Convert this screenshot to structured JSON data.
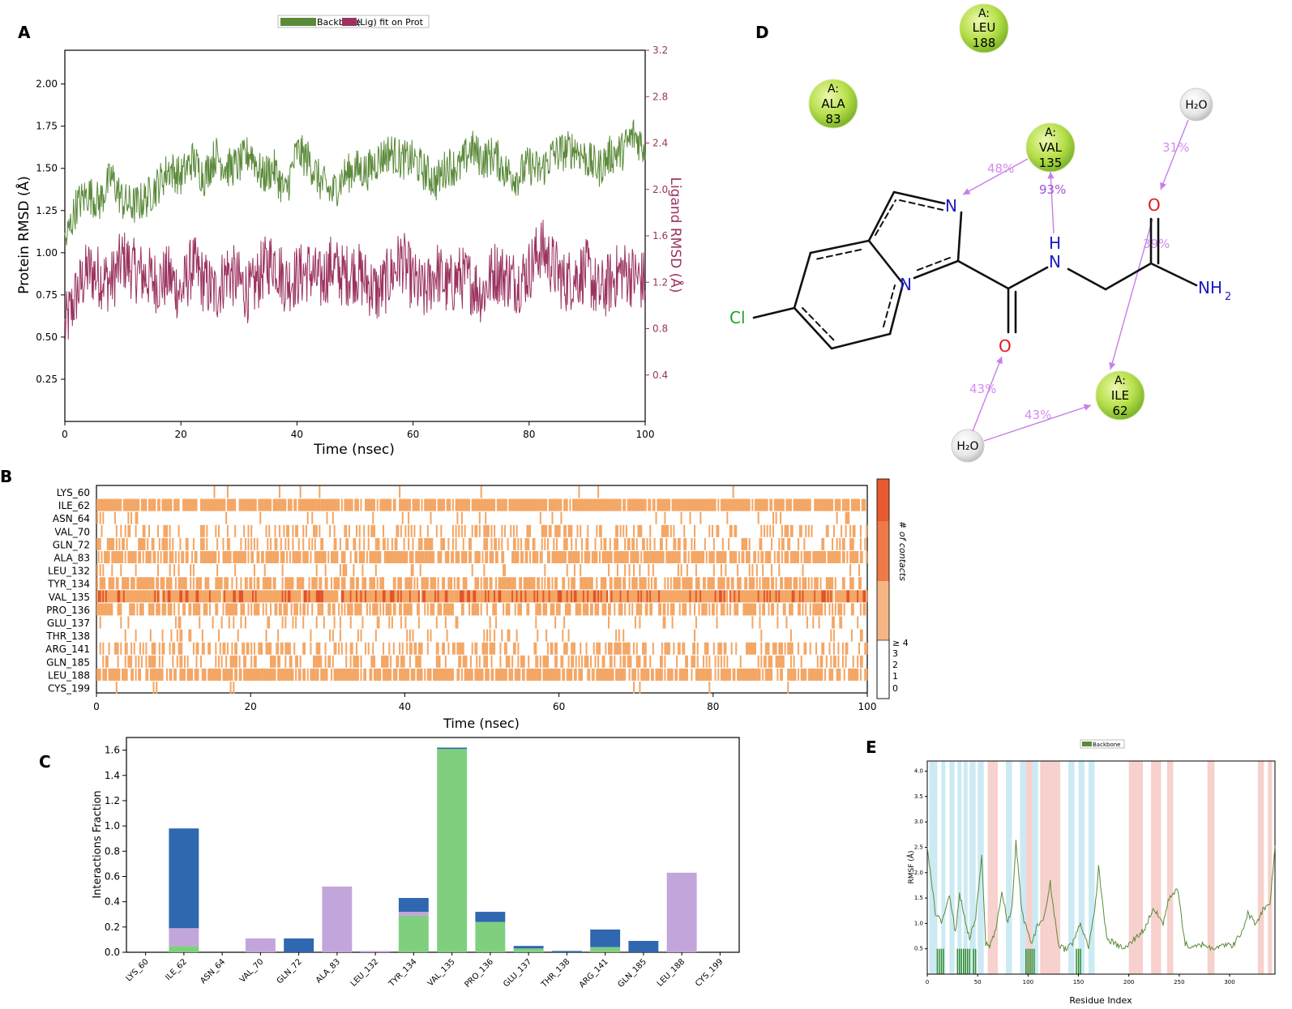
{
  "panel_letters": {
    "a": "A",
    "b": "B",
    "c": "C",
    "d": "D",
    "e": "E"
  },
  "colors": {
    "green": "#5b8a3a",
    "maroon": "#9b3360",
    "blue": "#2f67b1",
    "purple": "#c2a5da",
    "light_green": "#7fcf7f",
    "contact_orange": "#f4a665",
    "contact_dark": "#e0532a",
    "sheet_pink": "#f5c6c0",
    "helix_cyan": "#bfe5f1",
    "arrow_violet": "#d58cf0"
  },
  "chart_data": [
    {
      "id": "A",
      "type": "line",
      "legend": [
        "Backbone",
        "(Lig) fit on Prot"
      ],
      "legend_placement": "top-center",
      "xlabel": "Time (nsec)",
      "ylabel_left": "Protein RMSD (Å)",
      "ylabel_right": "Ligand RMSD (Å)",
      "xlim": [
        0,
        100
      ],
      "ylim_left": [
        0.0,
        2.2
      ],
      "ylim_right": [
        0.0,
        3.2
      ],
      "xticks": [
        "0",
        "20",
        "40",
        "60",
        "80",
        "100"
      ],
      "yticks_left": [
        "0.25",
        "0.50",
        "0.75",
        "1.00",
        "1.25",
        "1.50",
        "1.75",
        "2.00"
      ],
      "yticks_right": [
        "0.4",
        "0.8",
        "1.2",
        "1.6",
        "2.0",
        "2.4",
        "2.8",
        "3.2"
      ],
      "series": [
        {
          "name": "Backbone",
          "axis": "left",
          "x": [
            0,
            2,
            4,
            6,
            8,
            10,
            12,
            14,
            16,
            18,
            20,
            22,
            24,
            26,
            28,
            30,
            32,
            34,
            36,
            38,
            40,
            42,
            44,
            46,
            48,
            50,
            52,
            54,
            56,
            58,
            60,
            62,
            64,
            66,
            68,
            70,
            72,
            74,
            76,
            78,
            80,
            82,
            84,
            86,
            88,
            90,
            92,
            94,
            96,
            98,
            100
          ],
          "y": [
            1.05,
            1.28,
            1.35,
            1.3,
            1.45,
            1.3,
            1.28,
            1.32,
            1.4,
            1.5,
            1.45,
            1.55,
            1.45,
            1.58,
            1.5,
            1.52,
            1.6,
            1.45,
            1.5,
            1.35,
            1.6,
            1.55,
            1.42,
            1.35,
            1.45,
            1.5,
            1.48,
            1.55,
            1.6,
            1.55,
            1.55,
            1.48,
            1.42,
            1.52,
            1.5,
            1.62,
            1.55,
            1.58,
            1.48,
            1.45,
            1.52,
            1.48,
            1.58,
            1.6,
            1.62,
            1.55,
            1.5,
            1.58,
            1.6,
            1.7,
            1.62
          ]
        },
        {
          "name": "(Lig) fit on Prot",
          "axis": "right",
          "x": [
            0,
            2,
            4,
            6,
            8,
            10,
            12,
            14,
            16,
            18,
            20,
            22,
            24,
            26,
            28,
            30,
            32,
            34,
            36,
            38,
            40,
            42,
            44,
            46,
            48,
            50,
            52,
            54,
            56,
            58,
            60,
            62,
            64,
            66,
            68,
            70,
            72,
            74,
            76,
            78,
            80,
            82,
            84,
            86,
            88,
            90,
            92,
            94,
            96,
            98,
            100
          ],
          "y": [
            0.8,
            1.1,
            1.3,
            1.25,
            1.2,
            1.4,
            1.3,
            1.25,
            1.2,
            1.25,
            1.1,
            1.35,
            1.2,
            1.1,
            1.3,
            1.2,
            1.1,
            1.3,
            1.4,
            1.2,
            1.25,
            1.3,
            1.2,
            1.35,
            1.25,
            1.3,
            1.2,
            1.1,
            1.25,
            1.4,
            1.2,
            1.1,
            1.3,
            1.15,
            1.25,
            1.2,
            1.1,
            1.3,
            1.25,
            1.2,
            1.3,
            1.5,
            1.35,
            1.2,
            1.25,
            1.3,
            1.1,
            1.2,
            1.3,
            1.25,
            1.2
          ]
        }
      ]
    },
    {
      "id": "B",
      "type": "heatmap",
      "xlabel": "Time (nsec)",
      "xlim": [
        0,
        100
      ],
      "xticks": [
        "0",
        "20",
        "40",
        "60",
        "80",
        "100"
      ],
      "rows": [
        "LYS_60",
        "ILE_62",
        "ASN_64",
        "VAL_70",
        "GLN_72",
        "ALA_83",
        "LEU_132",
        "TYR_134",
        "VAL_135",
        "PRO_136",
        "GLU_137",
        "THR_138",
        "ARG_141",
        "GLN_185",
        "LEU_188",
        "CYS_199"
      ],
      "contact_density": [
        0.02,
        0.9,
        0.08,
        0.3,
        0.35,
        0.75,
        0.1,
        0.65,
        0.98,
        0.6,
        0.12,
        0.08,
        0.45,
        0.4,
        0.75,
        0.01
      ],
      "colorbar_label": "# of contacts",
      "colorbar_ticks": [
        "0",
        "1",
        "2",
        "3",
        "≥ 4"
      ]
    },
    {
      "id": "C",
      "type": "bar",
      "stacked": true,
      "ylabel": "Interactions Fraction",
      "ylim": [
        0,
        1.7
      ],
      "yticks": [
        "0.0",
        "0.2",
        "0.4",
        "0.6",
        "0.8",
        "1.0",
        "1.2",
        "1.4",
        "1.6"
      ],
      "categories": [
        "LYS_60",
        "ILE_62",
        "ASN_64",
        "VAL_70",
        "GLN_72",
        "ALA_83",
        "LEU_132",
        "TYR_134",
        "VAL_135",
        "PRO_136",
        "GLU_137",
        "THR_138",
        "ARG_141",
        "GLN_185",
        "LEU_188",
        "CYS_199"
      ],
      "series": [
        {
          "type": "h-bonds",
          "color_key": "light_green",
          "values": [
            0.0,
            0.05,
            0.0,
            0.0,
            0.0,
            0.0,
            0.0,
            0.29,
            1.61,
            0.24,
            0.03,
            0.0,
            0.04,
            0.0,
            0.0,
            0.0
          ]
        },
        {
          "type": "hydrophobic",
          "color_key": "purple",
          "values": [
            0.0,
            0.14,
            0.0,
            0.11,
            0.0,
            0.52,
            0.01,
            0.03,
            0.0,
            0.0,
            0.0,
            0.0,
            0.0,
            0.0,
            0.63,
            0.0
          ]
        },
        {
          "type": "water bridges",
          "color_key": "blue",
          "values": [
            0.0,
            0.79,
            0.0,
            0.0,
            0.11,
            0.0,
            0.0,
            0.11,
            0.01,
            0.08,
            0.02,
            0.01,
            0.14,
            0.09,
            0.0,
            0.0
          ]
        }
      ]
    },
    {
      "id": "E",
      "type": "line",
      "legend": [
        "Backbone"
      ],
      "legend_placement": "top-center",
      "xlabel": "Residue Index",
      "ylabel": "RMSF (Å)",
      "xlim": [
        0,
        345
      ],
      "ylim": [
        0,
        4.2
      ],
      "xticks": [
        "0",
        "50",
        "100",
        "150",
        "200",
        "250",
        "300"
      ],
      "yticks": [
        "0.5",
        "1.0",
        "1.5",
        "2.0",
        "2.5",
        "3.0",
        "3.5",
        "4.0"
      ],
      "series": [
        {
          "name": "Backbone",
          "x": [
            0,
            8,
            14,
            22,
            28,
            32,
            36,
            42,
            48,
            54,
            58,
            62,
            68,
            74,
            80,
            84,
            88,
            94,
            100,
            104,
            110,
            116,
            122,
            130,
            136,
            144,
            152,
            160,
            166,
            170,
            178,
            186,
            196,
            206,
            216,
            224,
            234,
            240,
            248,
            256,
            262,
            268,
            274,
            282,
            292,
            302,
            312,
            318,
            326,
            334,
            340,
            345
          ],
          "y": [
            2.5,
            1.2,
            1.0,
            1.6,
            0.8,
            1.6,
            1.2,
            0.7,
            1.1,
            2.3,
            0.6,
            0.55,
            0.9,
            1.6,
            1.0,
            1.3,
            2.6,
            1.2,
            0.8,
            0.6,
            1.0,
            1.1,
            1.8,
            0.6,
            0.5,
            0.6,
            1.0,
            0.55,
            1.2,
            2.1,
            0.7,
            0.6,
            0.5,
            0.7,
            0.9,
            1.3,
            1.0,
            1.5,
            1.7,
            0.6,
            0.5,
            0.55,
            0.6,
            0.5,
            0.6,
            0.55,
            0.8,
            1.2,
            1.0,
            1.3,
            1.4,
            2.5
          ]
        }
      ],
      "helix_regions": [
        [
          2,
          10
        ],
        [
          14,
          18
        ],
        [
          22,
          27
        ],
        [
          30,
          34
        ],
        [
          36,
          40
        ],
        [
          42,
          48
        ],
        [
          50,
          56
        ],
        [
          78,
          84
        ],
        [
          92,
          98
        ],
        [
          104,
          110
        ],
        [
          140,
          146
        ],
        [
          150,
          156
        ],
        [
          160,
          166
        ]
      ],
      "sheet_regions": [
        [
          60,
          66
        ],
        [
          66,
          70
        ],
        [
          98,
          104
        ],
        [
          112,
          120
        ],
        [
          120,
          132
        ],
        [
          200,
          214
        ],
        [
          222,
          232
        ],
        [
          238,
          244
        ],
        [
          278,
          285
        ],
        [
          328,
          334
        ],
        [
          338,
          342
        ]
      ]
    }
  ],
  "diagram_D": {
    "residues": [
      {
        "chain": "A:",
        "name": "LEU",
        "num": "188"
      },
      {
        "chain": "A:",
        "name": "ALA",
        "num": "83"
      },
      {
        "chain": "A:",
        "name": "VAL",
        "num": "135"
      },
      {
        "chain": "A:",
        "name": "ILE",
        "num": "62"
      }
    ],
    "waters": [
      "H₂O",
      "H₂O"
    ],
    "atoms": {
      "n1": "N",
      "n2": "N",
      "h": "H",
      "nh": "N",
      "o1": "O",
      "o2": "O",
      "cl": "Cl",
      "nh2_n": "NH",
      "nh2_sub": "2"
    },
    "percents": [
      "48%",
      "93%",
      "31%",
      "39%",
      "43%",
      "43%"
    ]
  }
}
